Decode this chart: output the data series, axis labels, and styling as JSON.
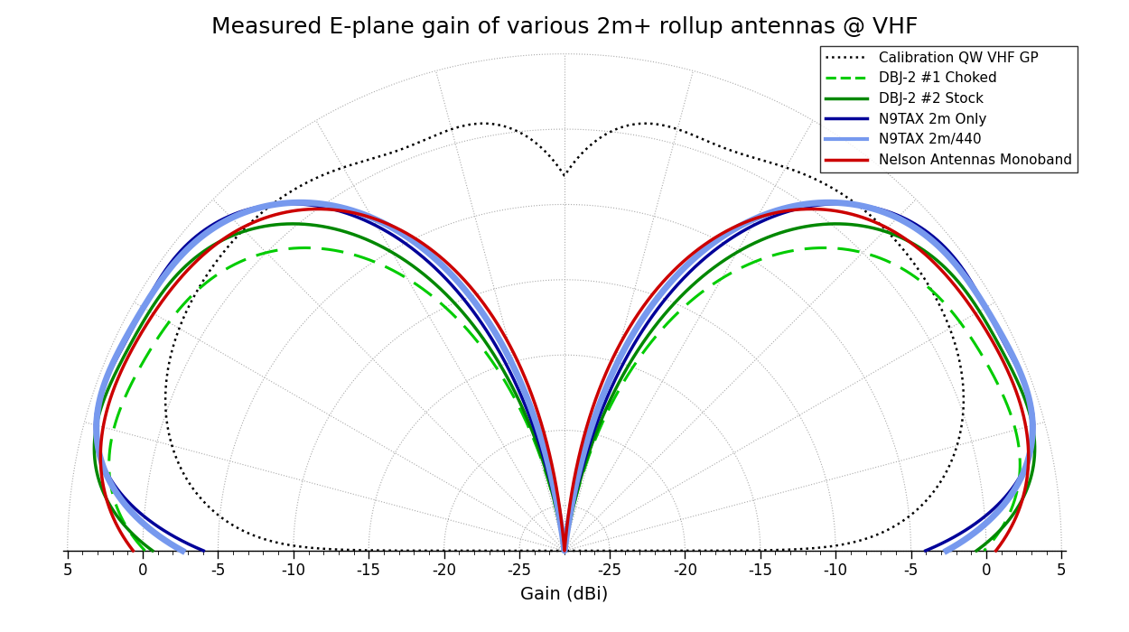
{
  "title": "Measured E-plane gain of various 2m+ rollup antennas @ VHF",
  "xlabel": "Gain (dBi)",
  "gain_min": -28.0,
  "gain_max": 5.0,
  "gain_ticks": [
    -25,
    -20,
    -15,
    -10,
    -5,
    0,
    5
  ],
  "series": [
    {
      "label": "Calibration QW VHF GP",
      "color": "black",
      "linewidth": 1.8,
      "linestyle": "dotted",
      "peak_gain_dbi": 2.15,
      "pattern_type": "qw_gp"
    },
    {
      "label": "DBJ-2 #1 Choked",
      "color": "#00cc00",
      "linewidth": 2.2,
      "linestyle": "dashed",
      "peak_gain_dbi": 3.0,
      "pattern_type": "dbj_choked"
    },
    {
      "label": "DBJ-2 #2 Stock",
      "color": "#008800",
      "linewidth": 2.5,
      "linestyle": "solid",
      "peak_gain_dbi": 4.2,
      "pattern_type": "dbj_stock"
    },
    {
      "label": "N9TAX 2m Only",
      "color": "#000099",
      "linewidth": 2.5,
      "linestyle": "solid",
      "peak_gain_dbi": 4.5,
      "pattern_type": "n9tax_2m"
    },
    {
      "label": "N9TAX 2m/440",
      "color": "#7799ee",
      "linewidth": 5.0,
      "linestyle": "solid",
      "peak_gain_dbi": 4.5,
      "pattern_type": "n9tax_dual"
    },
    {
      "label": "Nelson Antennas Monoband",
      "color": "#cc0000",
      "linewidth": 2.5,
      "linestyle": "solid",
      "peak_gain_dbi": 3.8,
      "pattern_type": "nelson"
    }
  ],
  "background_color": "white",
  "grid_color": "#aaaaaa",
  "title_fontsize": 18,
  "label_fontsize": 14,
  "legend_fontsize": 11,
  "fig_width": 12.5,
  "fig_height": 7.0
}
